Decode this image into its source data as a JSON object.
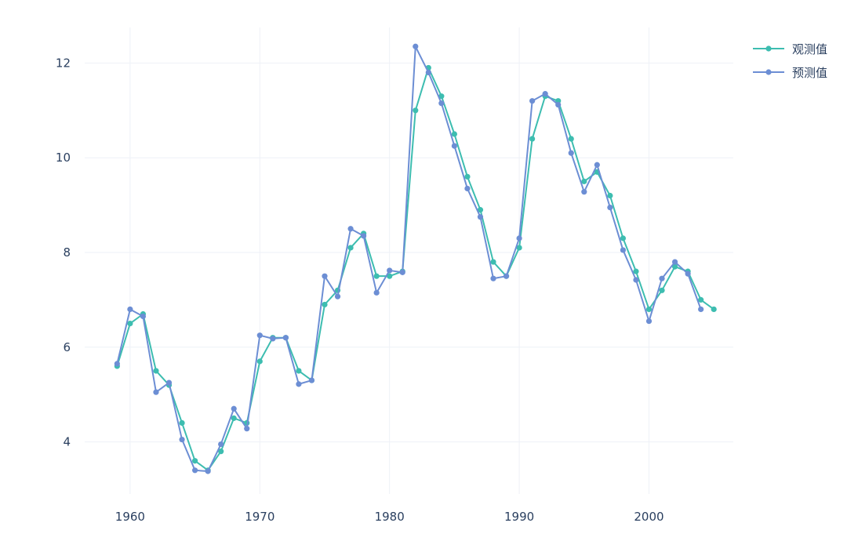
{
  "chart_data": {
    "type": "line",
    "title": "",
    "xlabel": "",
    "ylabel": "",
    "xlim": [
      1956.5,
      2006.5
    ],
    "ylim": [
      2.9,
      13.0
    ],
    "x_ticks": [
      1960,
      1970,
      1980,
      1990,
      2000
    ],
    "y_ticks": [
      4,
      6,
      8,
      10,
      12
    ],
    "grid": true,
    "legend_position": "top-right",
    "series": [
      {
        "name": "观测值",
        "color": "#3dbdb0",
        "x": [
          1959,
          1960,
          1961,
          1962,
          1963,
          1964,
          1965,
          1966,
          1967,
          1968,
          1969,
          1970,
          1971,
          1972,
          1973,
          1974,
          1975,
          1976,
          1977,
          1978,
          1979,
          1980,
          1981,
          1982,
          1983,
          1984,
          1985,
          1986,
          1987,
          1988,
          1989,
          1990,
          1991,
          1992,
          1993,
          1994,
          1995,
          1996,
          1997,
          1998,
          1999,
          2000,
          2001,
          2002,
          2003,
          2004,
          2005
        ],
        "values": [
          5.6,
          6.5,
          6.7,
          5.5,
          5.2,
          4.4,
          3.6,
          3.4,
          3.8,
          4.5,
          4.4,
          5.7,
          6.2,
          6.2,
          5.5,
          5.3,
          6.9,
          7.2,
          8.1,
          8.4,
          7.5,
          7.5,
          7.6,
          11.0,
          11.9,
          11.3,
          10.5,
          9.6,
          8.9,
          7.8,
          7.5,
          8.1,
          10.4,
          11.3,
          11.2,
          10.4,
          9.5,
          9.7,
          9.2,
          8.3,
          7.6,
          6.8,
          7.2,
          7.7,
          7.6,
          7.0,
          6.8
        ]
      },
      {
        "name": "预测值",
        "color": "#6c8ed4",
        "x": [
          1959,
          1960,
          1961,
          1962,
          1963,
          1964,
          1965,
          1966,
          1967,
          1968,
          1969,
          1970,
          1971,
          1972,
          1973,
          1974,
          1975,
          1976,
          1977,
          1978,
          1979,
          1980,
          1981,
          1982,
          1983,
          1984,
          1985,
          1986,
          1987,
          1988,
          1989,
          1990,
          1991,
          1992,
          1993,
          1994,
          1995,
          1996,
          1997,
          1998,
          1999,
          2000,
          2001,
          2002,
          2003,
          2004
        ],
        "values": [
          5.65,
          6.8,
          6.65,
          5.05,
          5.25,
          4.05,
          3.4,
          3.38,
          3.95,
          4.7,
          4.28,
          6.25,
          6.18,
          6.2,
          5.22,
          5.3,
          7.5,
          7.07,
          8.5,
          8.35,
          7.15,
          7.62,
          7.58,
          12.35,
          11.8,
          11.15,
          10.25,
          9.35,
          8.75,
          7.45,
          7.5,
          8.3,
          11.2,
          11.35,
          11.12,
          10.1,
          9.28,
          9.85,
          8.95,
          8.05,
          7.42,
          6.55,
          7.45,
          7.8,
          7.55,
          6.8
        ]
      }
    ]
  }
}
